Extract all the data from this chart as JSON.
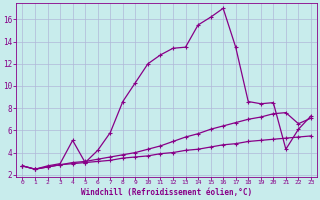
{
  "xlabel": "Windchill (Refroidissement éolien,°C)",
  "background_color": "#c8ecec",
  "grid_color": "#b0b8d8",
  "line_color": "#880088",
  "xlim": [
    -0.5,
    23.5
  ],
  "ylim": [
    1.8,
    17.5
  ],
  "xticks": [
    0,
    1,
    2,
    3,
    4,
    5,
    6,
    7,
    8,
    9,
    10,
    11,
    12,
    13,
    14,
    15,
    16,
    17,
    18,
    19,
    20,
    21,
    22,
    23
  ],
  "yticks": [
    2,
    4,
    6,
    8,
    10,
    12,
    14,
    16
  ],
  "series1_x": [
    0,
    1,
    2,
    3,
    4,
    5,
    6,
    7,
    8,
    9,
    10,
    11,
    12,
    13,
    14,
    15,
    16,
    17,
    18,
    19,
    20,
    21,
    22,
    23
  ],
  "series1_y": [
    2.8,
    2.5,
    2.7,
    2.9,
    3.0,
    3.1,
    3.2,
    3.3,
    3.5,
    3.6,
    3.7,
    3.9,
    4.0,
    4.2,
    4.3,
    4.5,
    4.7,
    4.8,
    5.0,
    5.1,
    5.2,
    5.3,
    5.4,
    5.5
  ],
  "series2_x": [
    0,
    1,
    2,
    3,
    4,
    5,
    6,
    7,
    8,
    9,
    10,
    11,
    12,
    13,
    14,
    15,
    16,
    17,
    18,
    19,
    20,
    21,
    22,
    23
  ],
  "series2_y": [
    2.8,
    2.5,
    2.7,
    2.9,
    3.1,
    3.2,
    3.4,
    3.6,
    3.8,
    4.0,
    4.3,
    4.6,
    5.0,
    5.4,
    5.7,
    6.1,
    6.4,
    6.7,
    7.0,
    7.2,
    7.5,
    7.6,
    6.6,
    7.1
  ],
  "series3_x": [
    0,
    1,
    2,
    3,
    4,
    5,
    6,
    7,
    8,
    9,
    10,
    11,
    12,
    13,
    14,
    15,
    16,
    17,
    18,
    19,
    20,
    21,
    22,
    23
  ],
  "series3_y": [
    2.8,
    2.5,
    2.8,
    3.0,
    5.1,
    3.1,
    4.2,
    5.8,
    8.6,
    10.3,
    12.0,
    12.8,
    13.4,
    13.5,
    15.5,
    16.2,
    17.0,
    13.5,
    8.6,
    8.4,
    8.5,
    4.3,
    6.1,
    7.3
  ],
  "marker": "+",
  "markersize": 3,
  "linewidth": 0.9
}
